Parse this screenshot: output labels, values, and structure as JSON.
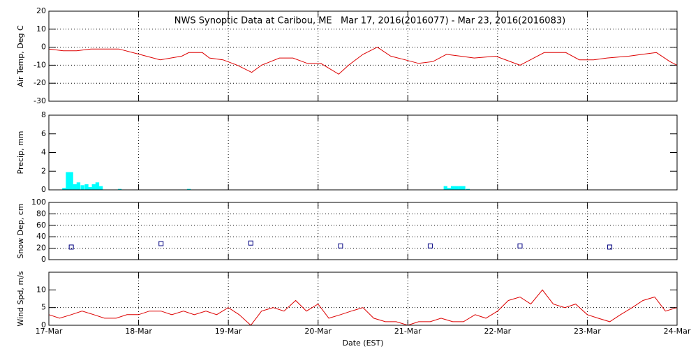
{
  "chart_data": [
    {
      "type": "line",
      "title": "NWS Synoptic Data at Caribou, ME   Mar 17, 2016(2016077) - Mar 23, 2016(2016083)",
      "y_label": "Air Temp, Deg C",
      "color": "#dd0000",
      "grid": true,
      "xlim": [
        0,
        7
      ],
      "ylim": [
        -30,
        20
      ],
      "yticks": [
        -30,
        -20,
        -10,
        0,
        10,
        20
      ],
      "x": [
        0,
        0.16,
        0.31,
        0.47,
        0.62,
        0.78,
        1.01,
        1.24,
        1.48,
        1.56,
        1.71,
        1.79,
        1.94,
        2.1,
        2.26,
        2.37,
        2.57,
        2.72,
        2.88,
        3.03,
        3.23,
        3.34,
        3.5,
        3.66,
        3.81,
        3.97,
        4.12,
        4.28,
        4.43,
        4.59,
        4.74,
        4.98,
        5.25,
        5.52,
        5.76,
        5.91,
        6.07,
        6.22,
        6.46,
        6.61,
        6.77,
        6.92,
        7
      ],
      "values": [
        -1,
        -2,
        -2,
        -1,
        -1,
        -1,
        -4,
        -7,
        -5,
        -3,
        -3,
        -6,
        -7,
        -10,
        -14,
        -10,
        -6,
        -6,
        -9,
        -9,
        -15,
        -10,
        -4,
        0,
        -5,
        -7,
        -9,
        -8,
        -4,
        -5,
        -6,
        -5,
        -10,
        -3,
        -3,
        -7,
        -7,
        -6,
        -5,
        -4,
        -3,
        -8,
        -10
      ]
    },
    {
      "type": "bar",
      "y_label": "Precip, mm",
      "color": "#00ffff",
      "grid": false,
      "xlim": [
        0,
        7
      ],
      "ylim": [
        0,
        8
      ],
      "yticks": [
        0,
        2,
        4,
        6,
        8
      ],
      "x": [
        0.17,
        0.21,
        0.25,
        0.29,
        0.33,
        0.375,
        0.42,
        0.46,
        0.5,
        0.54,
        0.58,
        0.79,
        1.56,
        4.42,
        4.46,
        4.5,
        4.54,
        4.58,
        4.62,
        4.67
      ],
      "values": [
        0.2,
        1.9,
        1.9,
        0.6,
        0.8,
        0.5,
        0.6,
        0.3,
        0.6,
        0.8,
        0.4,
        0.1,
        0.1,
        0.4,
        0.2,
        0.4,
        0.4,
        0.4,
        0.4,
        0.1
      ]
    },
    {
      "type": "scatter",
      "y_label": "Snow Dep, cm",
      "color": "#000080",
      "grid": true,
      "xlim": [
        0,
        7
      ],
      "ylim": [
        0,
        100
      ],
      "yticks": [
        0,
        20,
        40,
        60,
        80,
        100
      ],
      "x": [
        0.25,
        1.25,
        2.25,
        3.25,
        4.25,
        5.25,
        6.25
      ],
      "values": [
        22,
        28,
        29,
        24,
        24,
        24,
        22
      ]
    },
    {
      "type": "line",
      "y_label": "Wind Spd, m/s",
      "x_label": "Date (EST)",
      "color": "#dd0000",
      "grid": true,
      "xlim": [
        0,
        7
      ],
      "ylim": [
        0,
        15
      ],
      "yticks": [
        0,
        5,
        10
      ],
      "xticks": [
        {
          "value": 0,
          "label": "17-Mar"
        },
        {
          "value": 1,
          "label": "18-Mar"
        },
        {
          "value": 2,
          "label": "19-Mar"
        },
        {
          "value": 3,
          "label": "20-Mar"
        },
        {
          "value": 4,
          "label": "21-Mar"
        },
        {
          "value": 5,
          "label": "22-Mar"
        },
        {
          "value": 6,
          "label": "23-Mar"
        },
        {
          "value": 7,
          "label": "24-Mar"
        }
      ],
      "x": [
        0,
        0.12,
        0.25,
        0.37,
        0.5,
        0.62,
        0.75,
        0.87,
        1.0,
        1.12,
        1.25,
        1.37,
        1.5,
        1.62,
        1.75,
        1.87,
        2.0,
        2.12,
        2.25,
        2.37,
        2.5,
        2.62,
        2.75,
        2.87,
        3.0,
        3.12,
        3.25,
        3.37,
        3.5,
        3.62,
        3.75,
        3.87,
        4.0,
        4.12,
        4.25,
        4.37,
        4.5,
        4.62,
        4.75,
        4.87,
        5.0,
        5.12,
        5.25,
        5.37,
        5.5,
        5.62,
        5.75,
        5.87,
        6.0,
        6.12,
        6.25,
        6.37,
        6.5,
        6.62,
        6.75,
        6.87,
        7.0
      ],
      "values": [
        3,
        2,
        3,
        4,
        3,
        2,
        2,
        3,
        3,
        4,
        4,
        3,
        4,
        3,
        4,
        3,
        5,
        3,
        0,
        4,
        5,
        4,
        7,
        4,
        6,
        2,
        3,
        4,
        5,
        2,
        1,
        1,
        0,
        1,
        1,
        2,
        1,
        1,
        3,
        2,
        4,
        7,
        8,
        6,
        10,
        6,
        5,
        6,
        3,
        2,
        1,
        3,
        5,
        7,
        8,
        4,
        5
      ]
    }
  ]
}
